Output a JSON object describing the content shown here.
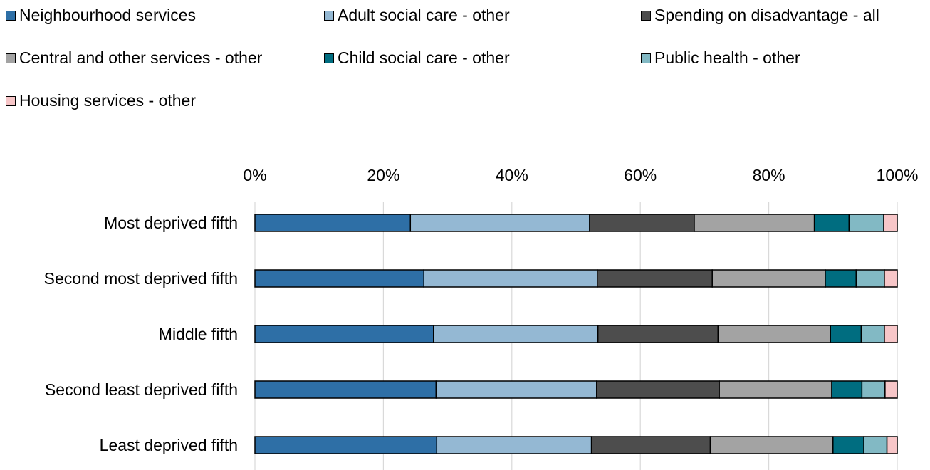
{
  "chart_data": {
    "type": "bar",
    "orientation": "horizontal",
    "stacked": "percent",
    "categories": [
      "Most deprived fifth",
      "Second most deprived fifth",
      "Middle fifth",
      "Second least deprived fifth",
      "Least deprived fifth"
    ],
    "series": [
      {
        "name": "Neighbourhood services",
        "color": "#2e6fa6",
        "values": [
          24.2,
          26.3,
          27.8,
          28.2,
          28.3
        ]
      },
      {
        "name": "Adult social care - other",
        "color": "#94b8d3",
        "values": [
          27.9,
          27.0,
          25.6,
          25.0,
          24.1
        ]
      },
      {
        "name": "Spending on disadvantage - all",
        "color": "#4d4d4d",
        "values": [
          16.3,
          17.9,
          18.7,
          19.1,
          18.5
        ]
      },
      {
        "name": "Central and other services - other",
        "color": "#a3a3a3",
        "values": [
          18.7,
          17.6,
          17.5,
          17.5,
          19.1
        ]
      },
      {
        "name": "Child social care - other",
        "color": "#006d80",
        "values": [
          5.4,
          4.8,
          4.8,
          4.7,
          4.8
        ]
      },
      {
        "name": "Public health - other",
        "color": "#82b9c4",
        "values": [
          5.4,
          4.4,
          3.6,
          3.6,
          3.6
        ]
      },
      {
        "name": "Housing services - other",
        "color": "#f7c6c8",
        "values": [
          2.1,
          2.0,
          2.0,
          1.9,
          1.6
        ]
      }
    ],
    "x_ticks": [
      "0%",
      "20%",
      "40%",
      "60%",
      "80%",
      "100%"
    ],
    "xlim": [
      0,
      100
    ],
    "x_axis_position": "top",
    "grid": "vertical",
    "legend_position": "top",
    "title": "",
    "xlabel": "",
    "ylabel": ""
  }
}
